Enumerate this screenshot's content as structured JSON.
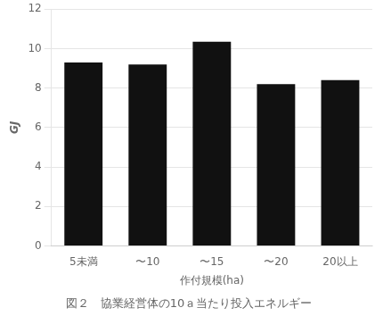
{
  "chart_data": {
    "type": "bar",
    "title": "図２　協業経営体の10ａ当たり投入エネルギー",
    "categories": [
      "5未満",
      "〜10",
      "〜15",
      "〜20",
      "20以上"
    ],
    "values": [
      9.3,
      9.2,
      10.35,
      8.2,
      8.4
    ],
    "color": "#111111",
    "xlabel": "作付規模(ha)",
    "ylabel": "GJ",
    "ylim": [
      0,
      12
    ],
    "yticks": [
      0,
      2,
      4,
      6,
      8,
      10,
      12
    ],
    "grid": true
  }
}
